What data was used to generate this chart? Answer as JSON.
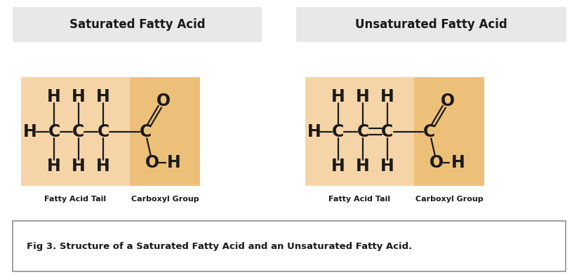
{
  "bg_color": "#ffffff",
  "panel_bg_light": "#f5d5a8",
  "panel_bg_dark": "#edc07a",
  "title_left": "Saturated Fatty Acid",
  "title_right": "Unsaturated Fatty Acid",
  "caption": "Fig 3. Structure of a Saturated Fatty Acid and an Unsaturated Fatty Acid.",
  "label_tail": "Fatty Acid Tail",
  "label_carboxyl": "Carboxyl Group",
  "font_color": "#1a1a1a",
  "title_box_bg": "#e8e8e8",
  "title_box_edge": "#cccccc"
}
